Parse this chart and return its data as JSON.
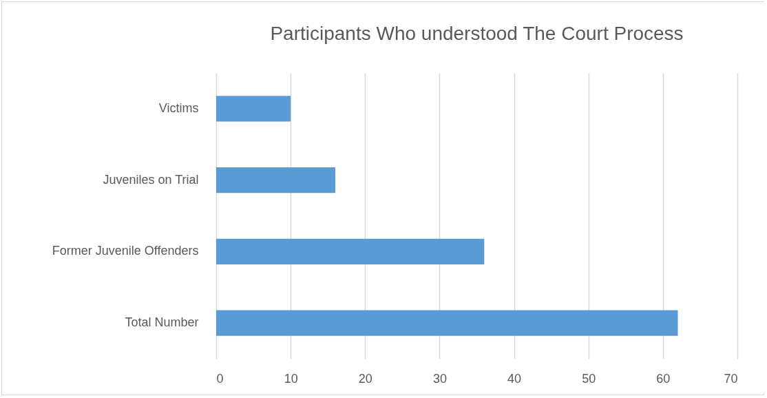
{
  "chart_data": {
    "type": "bar",
    "orientation": "horizontal",
    "title": "Participants Who  understood The Court Process",
    "categories": [
      "Victims",
      "Juveniles on Trial",
      "Former Juvenile Offenders",
      "Total Number"
    ],
    "values": [
      10,
      16,
      36,
      62
    ],
    "color": "#5b9bd5",
    "xlim": [
      0,
      70
    ],
    "xticks": [
      0,
      10,
      20,
      30,
      40,
      50,
      60,
      70
    ],
    "grid": "x"
  }
}
